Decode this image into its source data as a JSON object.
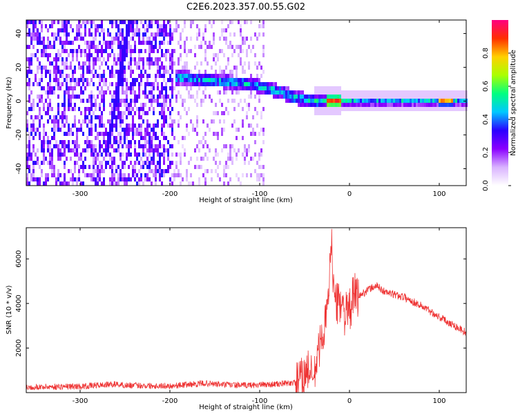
{
  "title": "C2E6.2023.357.00.55.G02",
  "chart_data": [
    {
      "type": "heatmap",
      "xlabel": "Height of straight line (km)",
      "ylabel": "Frequency (Hz)",
      "xlim": [
        -360,
        130
      ],
      "ylim": [
        -50,
        48
      ],
      "x_ticks": [
        -300,
        -200,
        -100,
        0,
        100
      ],
      "y_ticks": [
        -40,
        -20,
        0,
        20,
        40
      ],
      "colorbar": {
        "label": "Normalized spectral amplitude",
        "range": [
          0,
          1
        ],
        "ticks": [
          0.0,
          0.2,
          0.4,
          0.6,
          0.8
        ],
        "colors": [
          "#ffffff",
          "#d9b3ff",
          "#8a00ff",
          "#2a00ff",
          "#00c8ff",
          "#00ff80",
          "#aaff00",
          "#ffd000",
          "#ff3000",
          "#ff0080"
        ]
      },
      "features": [
        {
          "description": "diagonal streak",
          "points": [
            [
              -270,
              -30
            ],
            [
              -245,
              48
            ]
          ],
          "level": 0.25
        },
        {
          "description": "main ridge",
          "points": [
            [
              -190,
              14
            ],
            [
              -150,
              12
            ],
            [
              -110,
              10
            ],
            [
              -80,
              6
            ],
            [
              -60,
              2
            ],
            [
              -40,
              0
            ],
            [
              0,
              0
            ],
            [
              130,
              0
            ]
          ],
          "level": 0.35
        },
        {
          "description": "peak cluster",
          "points": [
            [
              -25,
              0
            ],
            [
              -10,
              0
            ]
          ],
          "level": 0.9
        },
        {
          "description": "secondary peak",
          "points": [
            [
              100,
              0
            ],
            [
              115,
              0
            ]
          ],
          "level": 0.8
        }
      ]
    },
    {
      "type": "line",
      "xlabel": "Height of straight line (km)",
      "ylabel": "SNR (10 * v/v)",
      "xlim": [
        -360,
        130
      ],
      "ylim": [
        0,
        7400
      ],
      "x_ticks": [
        -300,
        -200,
        -100,
        0,
        100
      ],
      "y_ticks": [
        2000,
        4000,
        6000
      ],
      "color": "#ee3333",
      "series": [
        {
          "x": [
            -360,
            -300,
            -260,
            -250,
            -200,
            -160,
            -150,
            -120,
            -80,
            -60,
            -50,
            -45,
            -40,
            -35,
            -30,
            -25,
            -22,
            -20,
            -18,
            -15,
            -10,
            -5,
            0,
            5,
            10,
            20,
            30,
            40,
            50,
            60,
            80,
            100,
            130
          ],
          "y": [
            250,
            280,
            380,
            330,
            300,
            420,
            380,
            320,
            380,
            450,
            800,
            1100,
            500,
            1800,
            2600,
            3500,
            5300,
            7200,
            4800,
            3900,
            4200,
            3500,
            3600,
            4400,
            4300,
            4600,
            4800,
            4500,
            4400,
            4300,
            3900,
            3400,
            2700
          ]
        }
      ]
    }
  ]
}
